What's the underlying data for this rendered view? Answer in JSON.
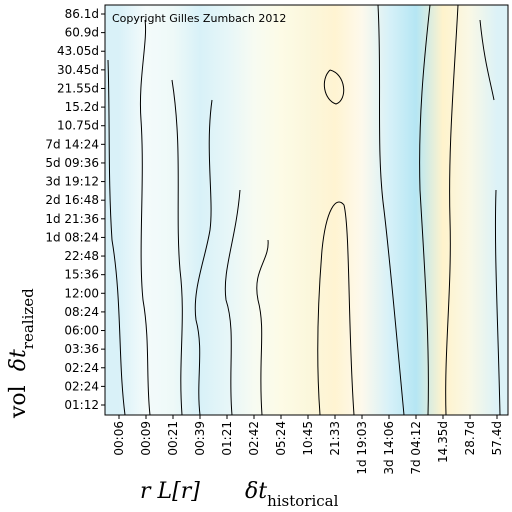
{
  "chart_data": {
    "type": "contour",
    "copyright": "Copyright Gilles Zumbach 2012",
    "x_categories": [
      "00:06",
      "00:09",
      "00:21",
      "00:39",
      "01:21",
      "02:42",
      "05:24",
      "10:45",
      "21:33",
      "1d 19:03",
      "3d 14:06",
      "7d 04:12",
      "14.35d",
      "28.7d",
      "57.4d"
    ],
    "y_categories": [
      "86.1d",
      "60.9d",
      "43.05d",
      "30.45d",
      "21.55d",
      "15.2d",
      "10.75d",
      "7d 14:24",
      "5d 09:36",
      "3d 19:12",
      "2d 16:48",
      "1d 21:36",
      "1d 08:24",
      "22:48",
      "15:36",
      "12:00",
      "08:24",
      "06:00",
      "03:36",
      "02:24",
      "02:24",
      "01:12"
    ],
    "colors": [
      "#d9f1f8",
      "#f4fbfb",
      "#eef9f8",
      "#d8f1f8",
      "#e6f6f8",
      "#f7fbf2",
      "#fdfbe6",
      "#fbf7dc",
      "#fff4d2",
      "#fdf9ec",
      "#d7f1f8",
      "#b5e6f4",
      "#fff3cc",
      "#f9f8e6",
      "#dcf2f7"
    ],
    "x_label": "r L[r]",
    "x_label_symbol": "δt",
    "x_label_sub": "historical",
    "y_label": "vol",
    "y_label_symbol": "δt",
    "y_label_sub": "realized"
  }
}
